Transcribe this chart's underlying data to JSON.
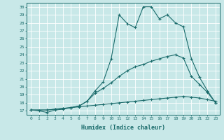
{
  "xlabel": "Humidex (Indice chaleur)",
  "bg_color": "#c8e8e8",
  "grid_color": "#ffffff",
  "line_color": "#1a6b6b",
  "xlim": [
    -0.5,
    23.5
  ],
  "ylim": [
    16.5,
    30.5
  ],
  "xticks": [
    0,
    1,
    2,
    3,
    4,
    5,
    6,
    7,
    8,
    9,
    10,
    11,
    12,
    13,
    14,
    15,
    16,
    17,
    18,
    19,
    20,
    21,
    22,
    23
  ],
  "yticks": [
    17,
    18,
    19,
    20,
    21,
    22,
    23,
    24,
    25,
    26,
    27,
    28,
    29,
    30
  ],
  "line1_x": [
    0,
    1,
    2,
    3,
    4,
    5,
    6,
    7,
    8,
    9,
    10,
    11,
    12,
    13,
    14,
    15,
    16,
    17,
    18,
    19,
    20,
    21,
    22,
    23
  ],
  "line1_y": [
    17.1,
    17.0,
    16.8,
    17.1,
    17.2,
    17.4,
    17.6,
    18.2,
    19.5,
    20.6,
    23.5,
    29.0,
    27.9,
    27.4,
    30.0,
    30.0,
    28.5,
    29.0,
    28.0,
    27.5,
    23.5,
    21.2,
    19.5,
    18.0
  ],
  "line2_x": [
    0,
    2,
    3,
    4,
    5,
    6,
    7,
    8,
    9,
    10,
    11,
    12,
    13,
    14,
    15,
    16,
    17,
    18,
    19,
    20,
    21,
    22,
    23
  ],
  "line2_y": [
    17.1,
    17.1,
    17.2,
    17.3,
    17.4,
    17.6,
    18.2,
    19.2,
    19.8,
    20.5,
    21.3,
    22.0,
    22.5,
    22.8,
    23.2,
    23.5,
    23.8,
    24.0,
    23.6,
    21.3,
    20.3,
    19.3,
    18.0
  ],
  "line3_x": [
    0,
    2,
    3,
    4,
    5,
    6,
    7,
    8,
    9,
    10,
    11,
    12,
    13,
    14,
    15,
    16,
    17,
    18,
    19,
    20,
    21,
    22,
    23
  ],
  "line3_y": [
    17.1,
    17.1,
    17.2,
    17.3,
    17.4,
    17.5,
    17.6,
    17.7,
    17.8,
    17.9,
    18.0,
    18.1,
    18.2,
    18.3,
    18.4,
    18.5,
    18.6,
    18.7,
    18.8,
    18.7,
    18.6,
    18.4,
    18.2
  ]
}
